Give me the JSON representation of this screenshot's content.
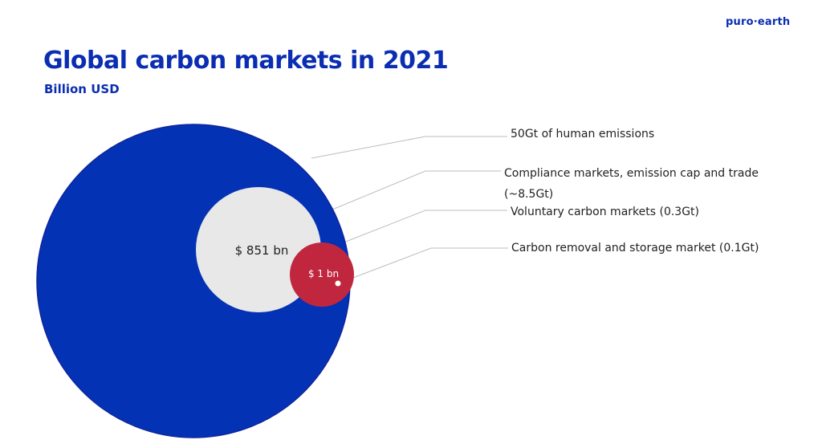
{
  "brand": {
    "name": "puro·earth",
    "color": "#0a2db2"
  },
  "header": {
    "title": "Global carbon markets in 2021",
    "subtitle": "Billion USD"
  },
  "colors": {
    "title": "#0a2db2",
    "emissions_circle": "#0432b5",
    "compliance_circle": "#e8e8e8",
    "removal_circle": "#c0273f",
    "leader_line": "#bdbdbd",
    "label_text": "#222222"
  },
  "chart_data": {
    "type": "nested-bubble",
    "title": "Global carbon markets in 2021",
    "subtitle": "Billion USD",
    "items": [
      {
        "label": "50Gt of human emissions",
        "value_label": "",
        "color": "#0432b5"
      },
      {
        "label_lines": [
          "Compliance markets, emission cap and trade",
          "(~8.5Gt)"
        ],
        "value_label": "$ 851 bn",
        "color": "#e8e8e8"
      },
      {
        "label": "Voluntary carbon markets (0.3Gt)",
        "value_label": "$ 1 bn",
        "color": "#c0273f"
      },
      {
        "label": "Carbon removal and storage market (0.1Gt)",
        "value_label": "",
        "color": "#ffffff"
      }
    ]
  }
}
